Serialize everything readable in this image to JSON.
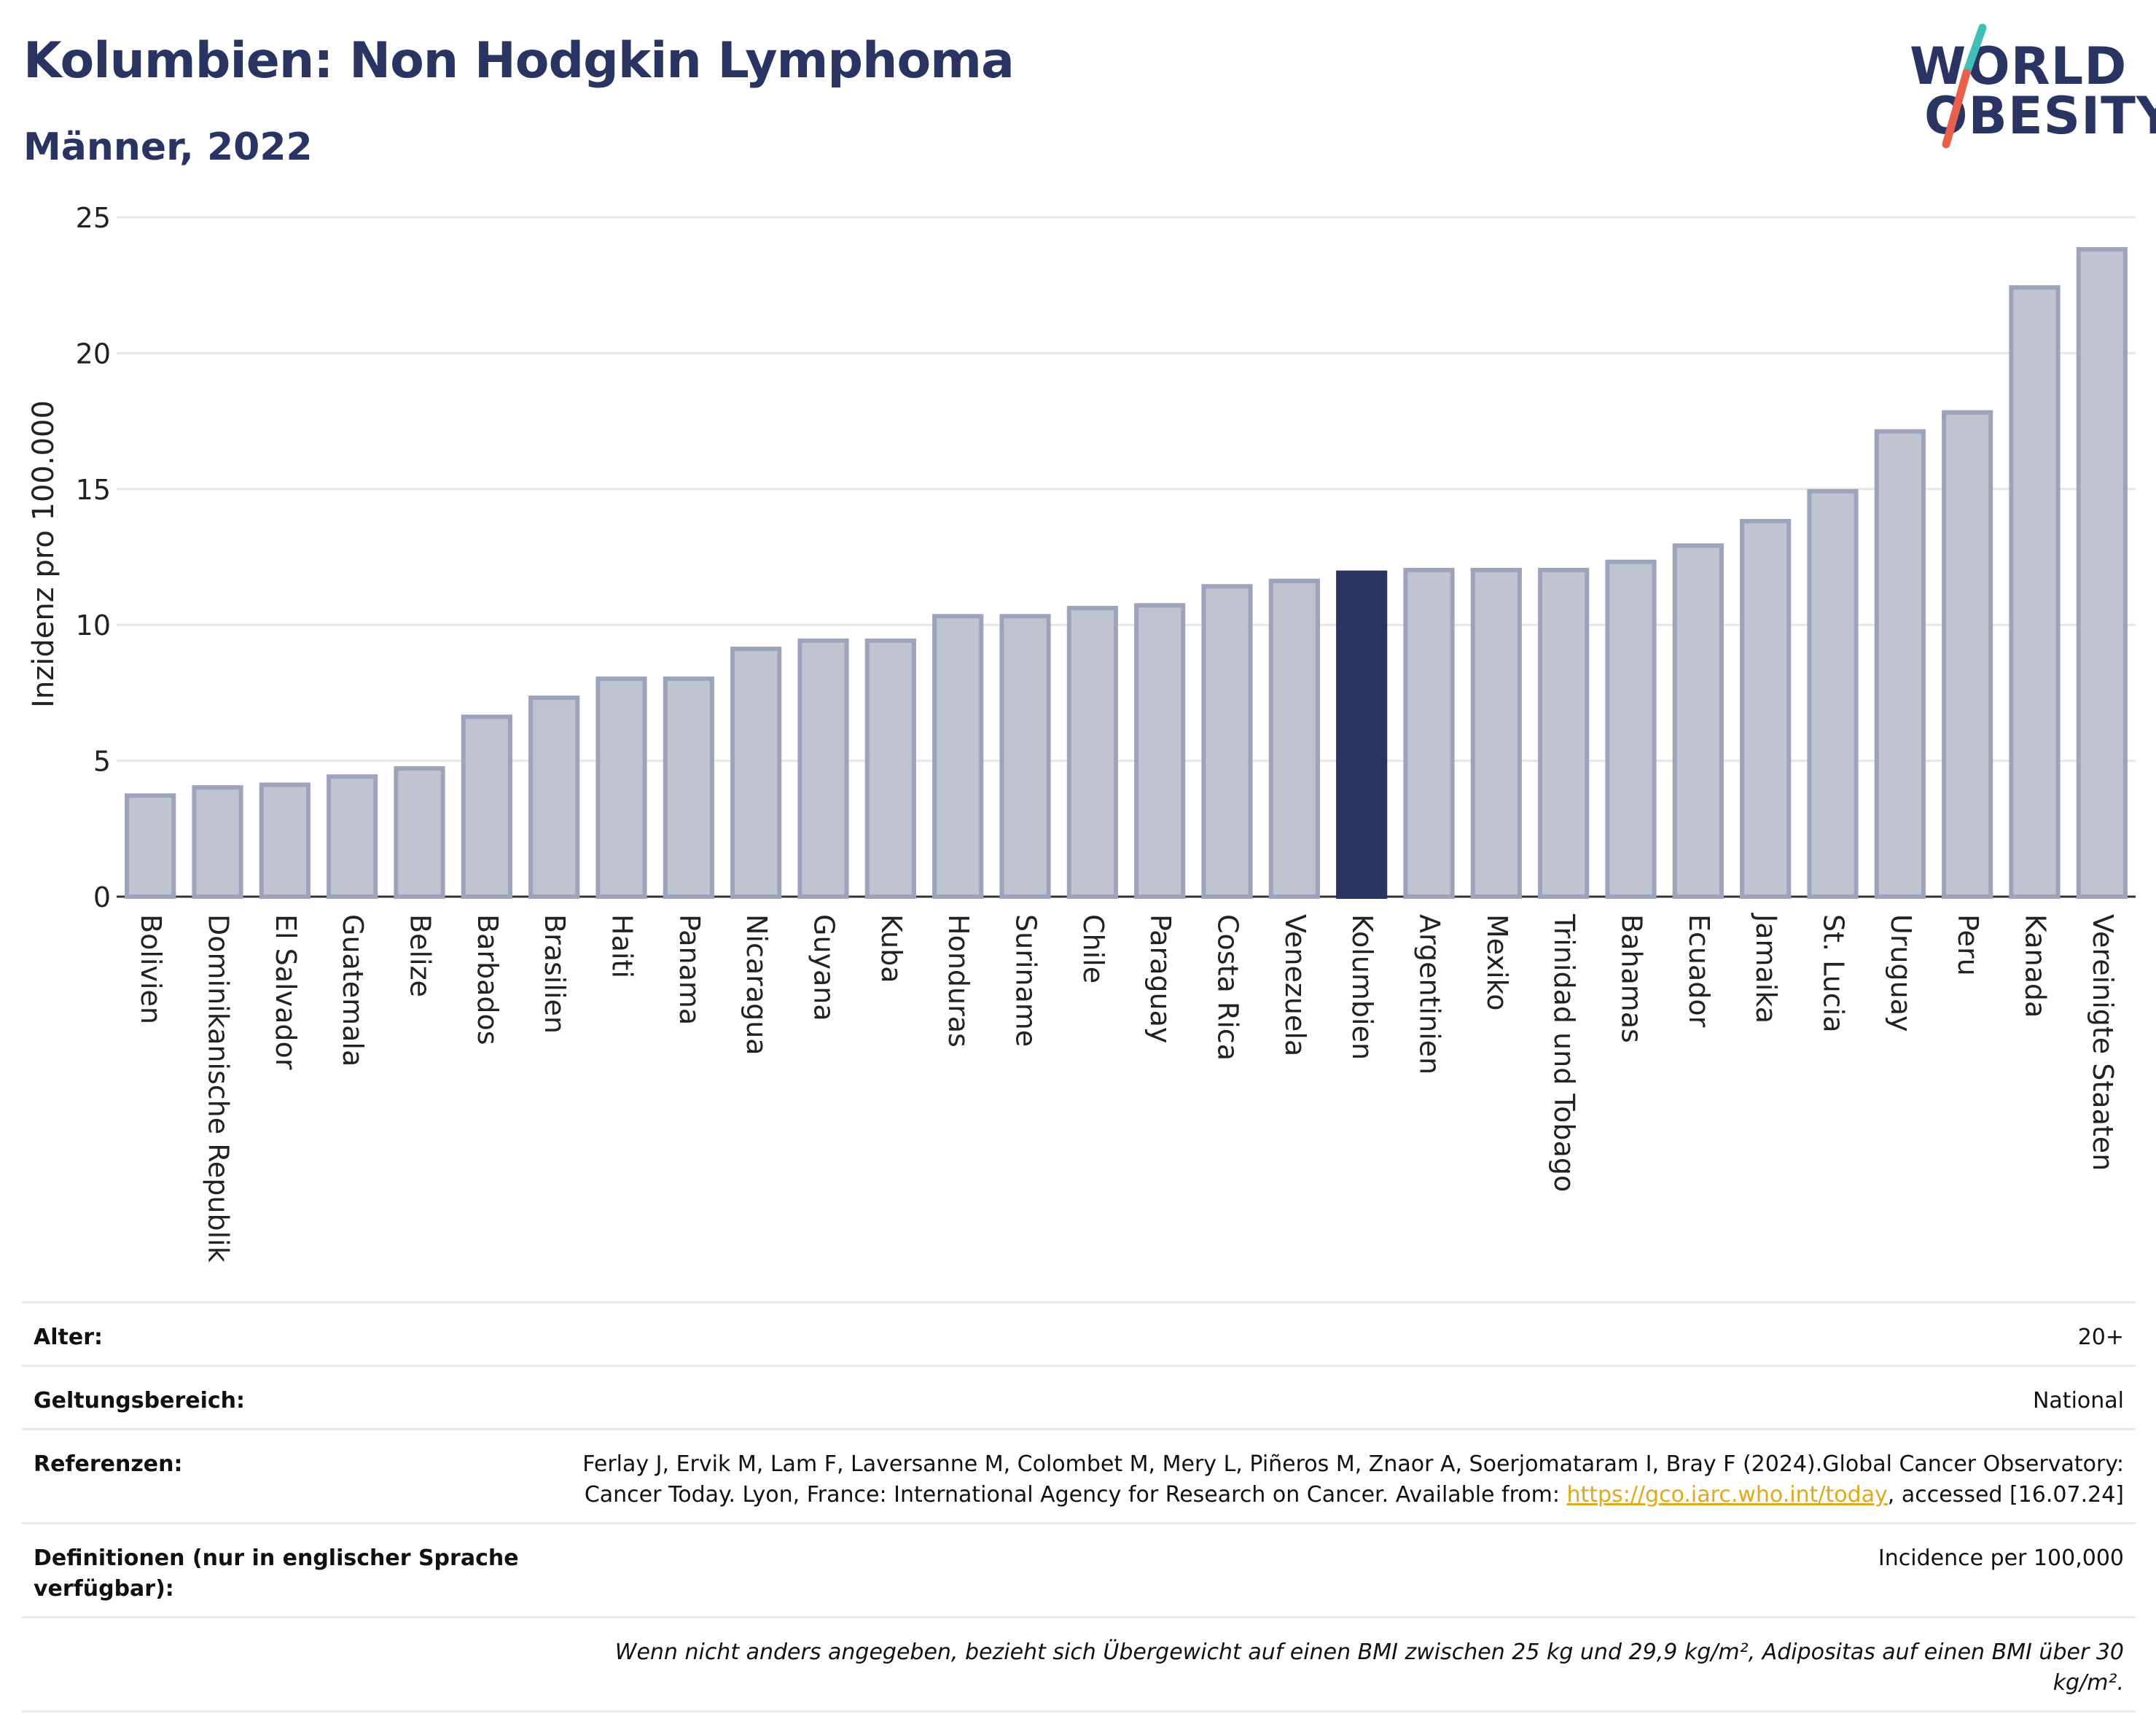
{
  "header": {
    "title": "Kolumbien: Non Hodgkin Lymphoma",
    "subtitle": "Männer, 2022"
  },
  "logo": {
    "line1": "WORLD",
    "line2": "OBESITY",
    "colors": {
      "text": "#2a3462",
      "slash_top": "#3fbfb7",
      "slash_bottom": "#e8604c"
    }
  },
  "chart_data": {
    "type": "bar",
    "ylabel": "Inzidenz pro 100.000",
    "ylim": [
      0,
      25
    ],
    "yticks": [
      0,
      5,
      10,
      15,
      20,
      25
    ],
    "grid": true,
    "highlight": "Kolumbien",
    "colors": {
      "bar": "#c0c3d0",
      "bar_border": "#9ea3bc",
      "highlight": "#2a3462"
    },
    "categories": [
      "Bolivien",
      "Dominikanische Republik",
      "El Salvador",
      "Guatemala",
      "Belize",
      "Barbados",
      "Brasilien",
      "Haiti",
      "Panama",
      "Nicaragua",
      "Guyana",
      "Kuba",
      "Honduras",
      "Suriname",
      "Chile",
      "Paraguay",
      "Costa Rica",
      "Venezuela",
      "Kolumbien",
      "Argentinien",
      "Mexiko",
      "Trinidad und Tobago",
      "Bahamas",
      "Ecuador",
      "Jamaika",
      "St. Lucia",
      "Uruguay",
      "Peru",
      "Kanada",
      "Vereinigte Staaten"
    ],
    "values": [
      3.8,
      4.1,
      4.2,
      4.5,
      4.8,
      6.7,
      7.4,
      8.1,
      8.1,
      9.2,
      9.5,
      9.5,
      10.4,
      10.4,
      10.7,
      10.8,
      11.5,
      11.7,
      12.0,
      12.1,
      12.1,
      12.1,
      12.4,
      13.0,
      13.9,
      15.0,
      17.2,
      17.9,
      22.5,
      23.9
    ]
  },
  "info": {
    "age_label": "Alter:",
    "age_value": "20+",
    "scope_label": "Geltungsbereich:",
    "scope_value": "National",
    "ref_label": "Referenzen:",
    "ref_text1": "Ferlay J, Ervik M, Lam F, Laversanne M, Colombet M, Mery L, Piñeros M, Znaor A, Soerjomataram I, Bray F (2024).Global Cancer Observatory: Cancer Today. Lyon, France: International Agency for Research on Cancer. Available from: ",
    "ref_link": "https://gco.iarc.who.int/today",
    "ref_text2": ", accessed [16.07.24]",
    "def_label": "Definitionen (nur in englischer Sprache verfügbar):",
    "def_value": "Incidence per 100,000",
    "note": "Wenn nicht anders angegeben, bezieht sich Übergewicht auf einen BMI zwischen 25 kg und 29,9 kg/m², Adipositas auf einen BMI über 30 kg/m²."
  }
}
